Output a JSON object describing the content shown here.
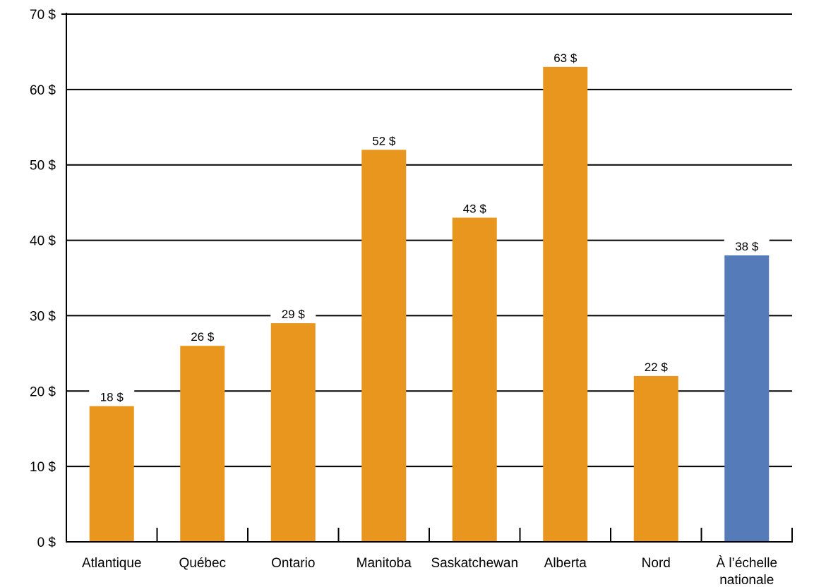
{
  "chart_data": {
    "type": "bar",
    "title": "",
    "xlabel": "",
    "ylabel": "",
    "ylim": [
      0,
      70
    ],
    "yticks": [
      0,
      10,
      20,
      30,
      40,
      50,
      60,
      70
    ],
    "ytick_labels": [
      "0 $",
      "10 $",
      "20 $",
      "30 $",
      "40 $",
      "50 $",
      "60 $",
      "70 $"
    ],
    "grid": true,
    "categories": [
      "Atlantique",
      "Québec",
      "Ontario",
      "Manitoba",
      "Saskatchewan",
      "Alberta",
      "Nord",
      "À l’échelle nationale"
    ],
    "category_lines": [
      [
        "Atlantique"
      ],
      [
        "Québec"
      ],
      [
        "Ontario"
      ],
      [
        "Manitoba"
      ],
      [
        "Saskatchewan"
      ],
      [
        "Alberta"
      ],
      [
        "Nord"
      ],
      [
        "À l’échelle",
        "nationale"
      ]
    ],
    "values": [
      18,
      26,
      29,
      52,
      43,
      63,
      22,
      38
    ],
    "value_labels": [
      "18 $",
      "26 $",
      "29 $",
      "52 $",
      "43 $",
      "63 $",
      "22 $",
      "38 $"
    ],
    "colors": [
      "#E8961E",
      "#E8961E",
      "#E8961E",
      "#E8961E",
      "#E8961E",
      "#E8961E",
      "#E8961E",
      "#557BB9"
    ]
  }
}
